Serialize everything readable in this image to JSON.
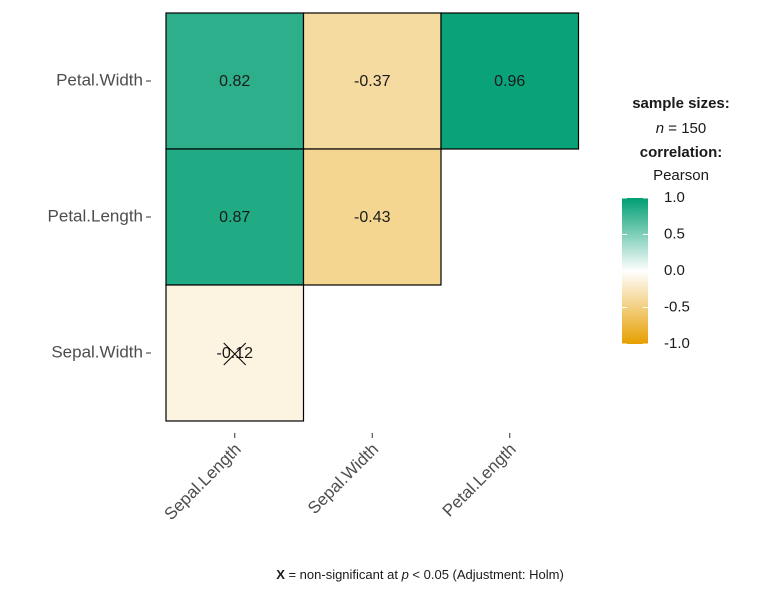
{
  "chart_data": {
    "type": "heatmap",
    "x_categories": [
      "Sepal.Length",
      "Sepal.Width",
      "Petal.Length"
    ],
    "y_categories": [
      "Petal.Width",
      "Petal.Length",
      "Sepal.Width"
    ],
    "values": [
      [
        0.82,
        -0.37,
        0.96
      ],
      [
        0.87,
        -0.43,
        null
      ],
      [
        -0.12,
        null,
        null
      ]
    ],
    "crossed": [
      [
        false,
        false,
        false
      ],
      [
        false,
        false,
        null
      ],
      [
        true,
        null,
        null
      ]
    ],
    "colors": {
      "low": "#E69F00",
      "mid": "#FFFFFF",
      "high": "#009E73"
    },
    "legend": {
      "sample_title": "sample sizes:",
      "n_symbol": "n",
      "n_text": " = 150",
      "correlation_title": "correlation:",
      "method": "Pearson"
    },
    "colorbar_lim": [
      -1,
      1
    ],
    "colorbar_ticks": [
      {
        "value": 1,
        "label": "1.0"
      },
      {
        "value": 0.5,
        "label": "0.5"
      },
      {
        "value": 0,
        "label": "0.0"
      },
      {
        "value": -0.5,
        "label": "-0.5"
      },
      {
        "value": -1,
        "label": "-1.0"
      }
    ],
    "caption": [
      "X",
      " = non-significant at ",
      "p",
      " < 0.05 (Adjustment: Holm)"
    ]
  }
}
